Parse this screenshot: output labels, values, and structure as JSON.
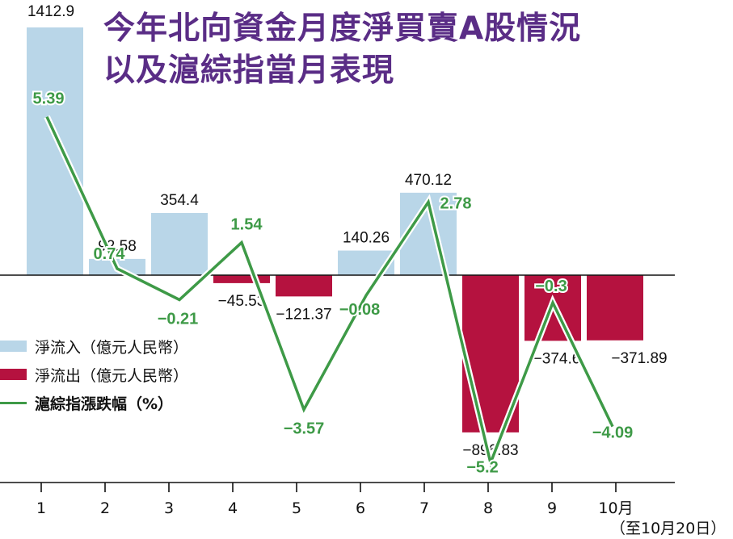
{
  "title": [
    "今年北向資金月度淨買賣A股情況",
    "以及滬綜指當月表現"
  ],
  "legend": [
    {
      "label": "淨流入（億元人民幣）",
      "color": "#b9d6e8",
      "kind": "bar"
    },
    {
      "label": "淨流出（億元人民幣）",
      "color": "#b5123f",
      "kind": "bar"
    },
    {
      "label": "滬綜指漲跌幅（%）",
      "color": "#3e9a47",
      "kind": "line"
    }
  ],
  "note": "（至10月20日）",
  "chart_data": {
    "type": "bar",
    "categories": [
      "1",
      "2",
      "3",
      "4",
      "5",
      "6",
      "7",
      "8",
      "9",
      "10月"
    ],
    "series": [
      {
        "name": "淨流入／淨流出（億元人民幣）",
        "type": "bar",
        "values": [
          1412.9,
          92.58,
          354.4,
          -45.53,
          -121.37,
          140.26,
          470.12,
          -896.83,
          -374.6,
          -371.89
        ],
        "labels": [
          "1412.9",
          "92.58",
          "354.4",
          "−45.53",
          "−121.37",
          "140.26",
          "470.12",
          "−896.83",
          "−374.6",
          "−371.89"
        ],
        "positive_color": "#b9d6e8",
        "negative_color": "#b5123f"
      },
      {
        "name": "滬綜指漲跌幅（%）",
        "type": "line",
        "values": [
          5.39,
          0.74,
          -0.21,
          1.54,
          -3.57,
          -0.08,
          2.78,
          -5.2,
          -0.3,
          -4.09
        ],
        "labels": [
          "5.39",
          "0.74",
          "−0.21",
          "1.54",
          "−3.57",
          "−0.08",
          "2.78",
          "−5.2",
          "−0.3",
          "−4.09"
        ],
        "color": "#3e9a47"
      }
    ],
    "grid": false
  }
}
